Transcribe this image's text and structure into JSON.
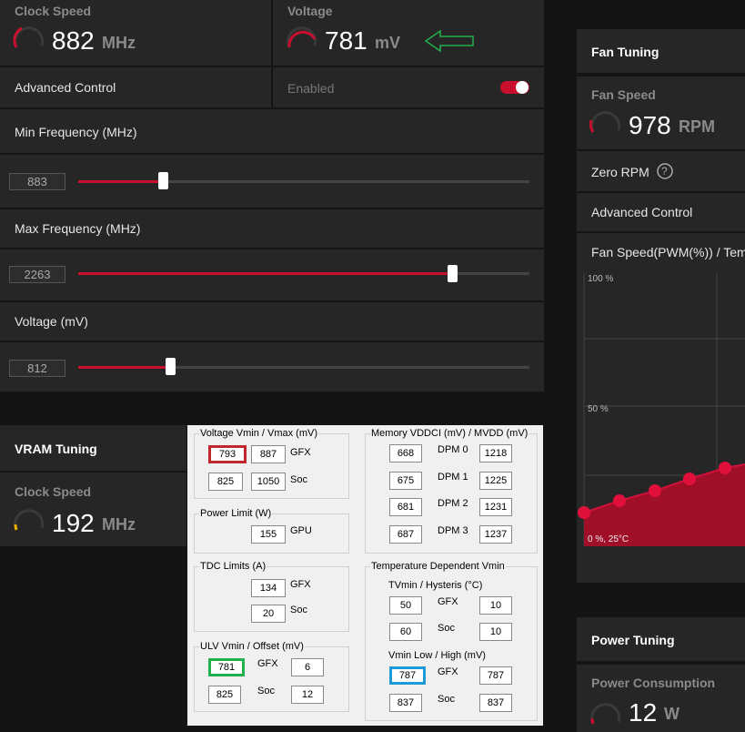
{
  "gpu_tuning": {
    "clock_speed": {
      "label": "Clock Speed",
      "value": 882,
      "unit": "MHz"
    },
    "voltage": {
      "label": "Voltage",
      "value": 781,
      "unit": "mV"
    },
    "advanced_control": {
      "label": "Advanced Control",
      "state": "Enabled"
    },
    "sliders": [
      {
        "label": "Min Frequency (MHz)",
        "value": 883
      },
      {
        "label": "Max Frequency (MHz)",
        "value": 2263
      },
      {
        "label": "Voltage (mV)",
        "value": 812
      }
    ]
  },
  "vram_tuning": {
    "title": "VRAM Tuning",
    "label": "Clock Speed",
    "value": 192,
    "unit": "MHz"
  },
  "fan_tuning": {
    "title": "Fan Tuning",
    "label": "Fan Speed",
    "value": 978,
    "unit": "RPM",
    "zero_rpm": "Zero RPM",
    "help": "?",
    "advanced_control": "Advanced Control",
    "curve_title": "Fan Speed(PWM(%)) / Temp",
    "y_top": "100 %",
    "y_mid": "50 %",
    "origin": "0 %, 25°C"
  },
  "power_tuning": {
    "title": "Power Tuning",
    "label": "Power Consumption",
    "value": 12,
    "unit": "W"
  },
  "overlay": {
    "voltage_vmin_vmax": {
      "title": "Voltage Vmin / Vmax (mV)",
      "rows": [
        {
          "min": 793,
          "max": 887,
          "label": "GFX"
        },
        {
          "min": 825,
          "max": 1050,
          "label": "Soc"
        }
      ]
    },
    "power_limit": {
      "title": "Power Limit (W)",
      "rows": [
        {
          "value": 155,
          "label": "GPU"
        }
      ]
    },
    "tdc_limits": {
      "title": "TDC Limits (A)",
      "rows": [
        {
          "value": 134,
          "label": "GFX"
        },
        {
          "value": 20,
          "label": "Soc"
        }
      ]
    },
    "ulv": {
      "title": "ULV Vmin / Offset (mV)",
      "rows": [
        {
          "vmin": 781,
          "label": "GFX",
          "offset": 6
        },
        {
          "vmin": 825,
          "label": "Soc",
          "offset": 12
        }
      ]
    },
    "memory": {
      "title": "Memory VDDCI (mV) / MVDD (mV)",
      "rows": [
        {
          "vddci": 668,
          "label": "DPM 0",
          "mvdd": 1218
        },
        {
          "vddci": 675,
          "label": "DPM 1",
          "mvdd": 1225
        },
        {
          "vddci": 681,
          "label": "DPM 2",
          "mvdd": 1231
        },
        {
          "vddci": 687,
          "label": "DPM 3",
          "mvdd": 1237
        }
      ]
    },
    "temperature_vmin": {
      "title": "Temperature Dependent Vmin",
      "tvmin_title": "TVmin / Hysteris (°C)",
      "tvmin_rows": [
        {
          "tvmin": 50,
          "label": "GFX",
          "hysteresis": 10
        },
        {
          "tvmin": 60,
          "label": "Soc",
          "hysteresis": 10
        }
      ],
      "vmin_title": "Vmin Low / High (mV)",
      "vmin_rows": [
        {
          "low": 787,
          "label": "GFX",
          "high": 787
        },
        {
          "low": 837,
          "label": "Soc",
          "high": 837
        }
      ]
    }
  }
}
